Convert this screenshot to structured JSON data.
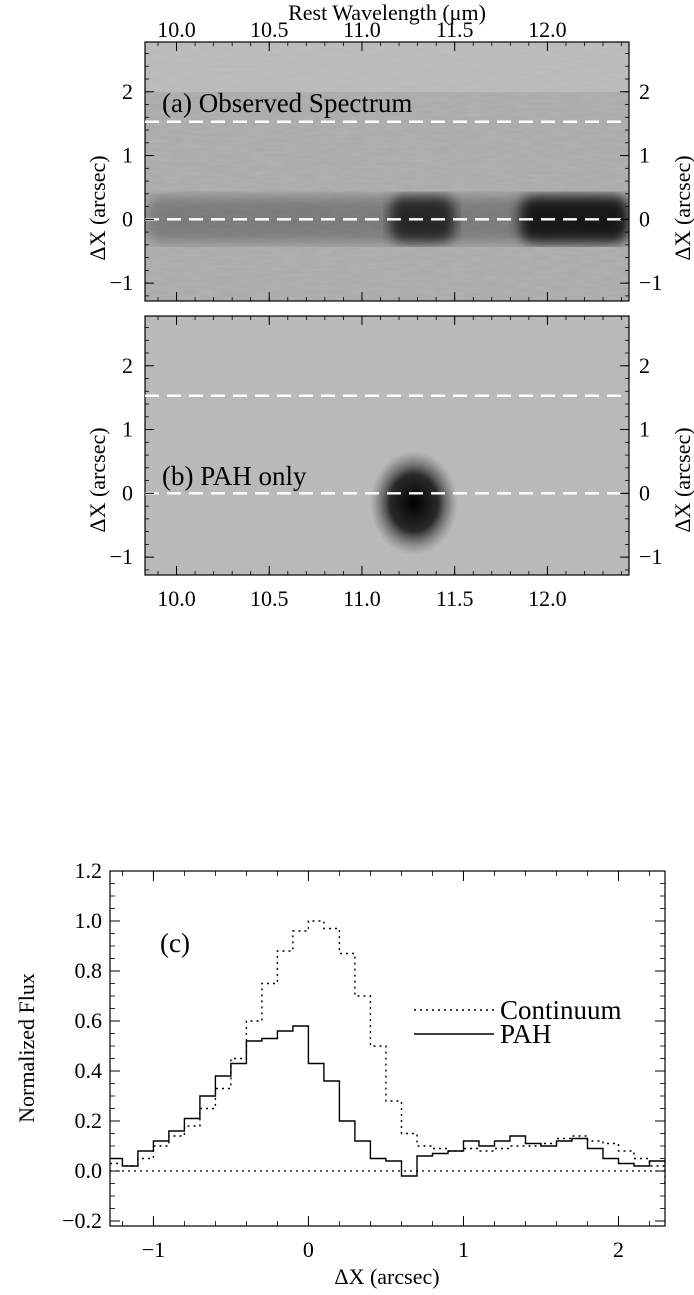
{
  "chart_data": [
    {
      "type": "heatmap",
      "panel_label": "(a) Observed Spectrum",
      "top_xlabel": "Rest Wavelength (μm)",
      "ylabel_left": "ΔX (arcsec)",
      "ylabel_right": "ΔX (arcsec)",
      "xlim": [
        9.83,
        12.44
      ],
      "ylim": [
        -1.28,
        2.78
      ],
      "x_ticks": [
        "10.0",
        "10.5",
        "11.0",
        "11.5",
        "12.0"
      ],
      "x_tick_values": [
        10.0,
        10.5,
        11.0,
        11.5,
        12.0
      ],
      "y_ticks": [
        "−1",
        "0",
        "1",
        "2"
      ],
      "y_tick_values": [
        -1,
        0,
        1,
        2
      ],
      "dashed_lines_y": [
        0,
        1.53
      ],
      "colormap": "grayscale-inverted",
      "features": [
        {
          "x_from": 9.83,
          "x_to": 12.44,
          "y": 0,
          "strength": 0.35,
          "note": "continuum band"
        },
        {
          "x_from": 11.15,
          "x_to": 11.5,
          "y": 0,
          "strength": 0.85
        },
        {
          "x_from": 11.85,
          "x_to": 12.44,
          "y": 0,
          "strength": 1.0
        }
      ]
    },
    {
      "type": "heatmap",
      "panel_label": "(b) PAH only",
      "ylabel_left": "ΔX (arcsec)",
      "ylabel_right": "ΔX (arcsec)",
      "xlim": [
        9.83,
        12.44
      ],
      "ylim": [
        -1.28,
        2.78
      ],
      "x_ticks": [
        "10.0",
        "10.5",
        "11.0",
        "11.5",
        "12.0"
      ],
      "x_tick_values": [
        10.0,
        10.5,
        11.0,
        11.5,
        12.0
      ],
      "y_ticks": [
        "−1",
        "0",
        "1",
        "2"
      ],
      "y_tick_values": [
        -1,
        0,
        1,
        2
      ],
      "dashed_lines_y": [
        0,
        1.53
      ],
      "colormap": "grayscale-inverted",
      "features": [
        {
          "x": 11.28,
          "y": -0.15,
          "strength": 1.0,
          "note": "PAH 11.3 μm blob"
        }
      ]
    },
    {
      "type": "line",
      "panel_label": "(c)",
      "xlabel": "ΔX (arcsec)",
      "ylabel": "Normalized Flux",
      "xlim": [
        -1.28,
        2.3
      ],
      "ylim": [
        -0.22,
        1.2
      ],
      "x_ticks": [
        "−1",
        "0",
        "1",
        "2"
      ],
      "x_tick_values": [
        -1,
        0,
        1,
        2
      ],
      "y_ticks": [
        "−0.2",
        "0.0",
        "0.2",
        "0.4",
        "0.6",
        "0.8",
        "1.0",
        "1.2"
      ],
      "y_tick_values": [
        -0.2,
        0.0,
        0.2,
        0.4,
        0.6,
        0.8,
        1.0,
        1.2
      ],
      "zero_line": 0.0,
      "legend": {
        "position": "right",
        "entries": [
          "Continuum",
          "PAH"
        ]
      },
      "series": [
        {
          "name": "Continuum",
          "style": "dotted-step",
          "x": [
            -1.28,
            -1.2,
            -1.1,
            -1.0,
            -0.9,
            -0.8,
            -0.7,
            -0.6,
            -0.5,
            -0.4,
            -0.3,
            -0.2,
            -0.1,
            0.0,
            0.1,
            0.2,
            0.3,
            0.4,
            0.5,
            0.6,
            0.7,
            0.8,
            0.9,
            1.0,
            1.1,
            1.2,
            1.3,
            1.4,
            1.5,
            1.6,
            1.7,
            1.8,
            1.9,
            2.0,
            2.1,
            2.2,
            2.3
          ],
          "y": [
            0.03,
            0.02,
            0.05,
            0.1,
            0.14,
            0.18,
            0.25,
            0.33,
            0.45,
            0.6,
            0.75,
            0.88,
            0.96,
            1.0,
            0.97,
            0.87,
            0.7,
            0.5,
            0.28,
            0.15,
            0.1,
            0.09,
            0.08,
            0.09,
            0.08,
            0.09,
            0.1,
            0.1,
            0.11,
            0.13,
            0.14,
            0.12,
            0.11,
            0.08,
            0.05,
            0.02,
            -0.05
          ]
        },
        {
          "name": "PAH",
          "style": "solid-step",
          "x": [
            -1.28,
            -1.2,
            -1.1,
            -1.0,
            -0.9,
            -0.8,
            -0.7,
            -0.6,
            -0.5,
            -0.4,
            -0.3,
            -0.2,
            -0.1,
            0.0,
            0.1,
            0.2,
            0.3,
            0.4,
            0.5,
            0.6,
            0.7,
            0.8,
            0.9,
            1.0,
            1.1,
            1.2,
            1.3,
            1.4,
            1.5,
            1.6,
            1.7,
            1.8,
            1.9,
            2.0,
            2.1,
            2.2,
            2.3
          ],
          "y": [
            0.05,
            0.02,
            0.08,
            0.12,
            0.16,
            0.21,
            0.3,
            0.38,
            0.43,
            0.52,
            0.53,
            0.56,
            0.58,
            0.43,
            0.36,
            0.2,
            0.12,
            0.05,
            0.04,
            -0.02,
            0.06,
            0.07,
            0.08,
            0.12,
            0.1,
            0.12,
            0.14,
            0.11,
            0.1,
            0.12,
            0.13,
            0.09,
            0.05,
            0.03,
            0.02,
            0.04,
            0.03
          ]
        }
      ]
    }
  ]
}
